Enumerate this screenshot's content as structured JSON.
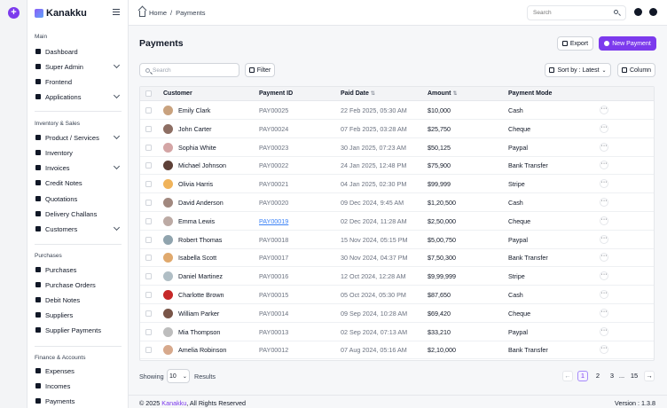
{
  "brand": {
    "name": "Kanakku"
  },
  "sidebar": {
    "sections": [
      {
        "title": "Main",
        "items": [
          {
            "label": "Dashboard",
            "chevron": false,
            "icon": "dashboard-icon"
          },
          {
            "label": "Super Admin",
            "chevron": true,
            "icon": "user-shield-icon"
          },
          {
            "label": "Frontend",
            "chevron": false,
            "icon": "frontend-icon"
          },
          {
            "label": "Applications",
            "chevron": true,
            "icon": "apps-icon"
          }
        ]
      },
      {
        "title": "Inventory & Sales",
        "items": [
          {
            "label": "Product / Services",
            "chevron": true,
            "icon": "box-icon"
          },
          {
            "label": "Inventory",
            "chevron": false,
            "icon": "inventory-icon"
          },
          {
            "label": "Invoices",
            "chevron": true,
            "icon": "invoice-icon"
          },
          {
            "label": "Credit Notes",
            "chevron": false,
            "icon": "credit-note-icon"
          },
          {
            "label": "Quotations",
            "chevron": false,
            "icon": "quotation-icon"
          },
          {
            "label": "Delivery Challans",
            "chevron": false,
            "icon": "truck-icon"
          },
          {
            "label": "Customers",
            "chevron": true,
            "icon": "users-icon"
          }
        ]
      },
      {
        "title": "Purchases",
        "items": [
          {
            "label": "Purchases",
            "chevron": false,
            "icon": "bag-icon"
          },
          {
            "label": "Purchase Orders",
            "chevron": false,
            "icon": "order-icon"
          },
          {
            "label": "Debit Notes",
            "chevron": false,
            "icon": "debit-note-icon"
          },
          {
            "label": "Suppliers",
            "chevron": false,
            "icon": "supplier-icon"
          },
          {
            "label": "Supplier Payments",
            "chevron": false,
            "icon": "payment-icon"
          }
        ]
      },
      {
        "title": "Finance & Accounts",
        "items": [
          {
            "label": "Expenses",
            "chevron": false,
            "icon": "expense-icon"
          },
          {
            "label": "Incomes",
            "chevron": false,
            "icon": "income-icon"
          },
          {
            "label": "Payments",
            "chevron": false,
            "icon": "payments-icon"
          }
        ]
      }
    ]
  },
  "header": {
    "breadcrumb_home": "Home",
    "breadcrumb_sep": "/",
    "breadcrumb_current": "Payments",
    "search_placeholder": "Search"
  },
  "page": {
    "title": "Payments",
    "export_label": "Export",
    "new_label": "New Payment",
    "search_placeholder": "Search",
    "filter_label": "Filter",
    "sort_label": "Sort by : Latest",
    "column_label": "Column"
  },
  "table": {
    "columns": [
      "Customer",
      "Payment ID",
      "Paid Date",
      "Amount",
      "Payment Mode"
    ],
    "rows": [
      {
        "customer": "Emily Clark",
        "id": "PAY00025",
        "date": "22 Feb 2025, 05:30 AM",
        "amount": "$10,000",
        "mode": "Cash"
      },
      {
        "customer": "John Carter",
        "id": "PAY00024",
        "date": "07 Feb 2025, 03:28 AM",
        "amount": "$25,750",
        "mode": "Cheque"
      },
      {
        "customer": "Sophia White",
        "id": "PAY00023",
        "date": "30 Jan 2025, 07:23 AM",
        "amount": "$50,125",
        "mode": "Paypal"
      },
      {
        "customer": "Michael Johnson",
        "id": "PAY00022",
        "date": "24 Jan 2025, 12:48 PM",
        "amount": "$75,900",
        "mode": "Bank Transfer"
      },
      {
        "customer": "Olivia Harris",
        "id": "PAY00021",
        "date": "04 Jan 2025, 02:30 PM",
        "amount": "$99,999",
        "mode": "Stripe"
      },
      {
        "customer": "David Anderson",
        "id": "PAY00020",
        "date": "09 Dec 2024, 9:45 AM",
        "amount": "$1,20,500",
        "mode": "Cash"
      },
      {
        "customer": "Emma Lewis",
        "id": "PAY00019",
        "date": "02 Dec 2024, 11:28 AM",
        "amount": "$2,50,000",
        "mode": "Cheque"
      },
      {
        "customer": "Robert Thomas",
        "id": "PAY00018",
        "date": "15 Nov 2024, 05:15 PM",
        "amount": "$5,00,750",
        "mode": "Paypal"
      },
      {
        "customer": "Isabella Scott",
        "id": "PAY00017",
        "date": "30 Nov 2024, 04:37 PM",
        "amount": "$7,50,300",
        "mode": "Bank Transfer"
      },
      {
        "customer": "Daniel Martinez",
        "id": "PAY00016",
        "date": "12 Oct 2024, 12:28 AM",
        "amount": "$9,99,999",
        "mode": "Stripe"
      },
      {
        "customer": "Charlotte Brown",
        "id": "PAY00015",
        "date": "05 Oct 2024, 05:30 PM",
        "amount": "$87,650",
        "mode": "Cash"
      },
      {
        "customer": "William Parker",
        "id": "PAY00014",
        "date": "09 Sep 2024, 10:28 AM",
        "amount": "$69,420",
        "mode": "Cheque"
      },
      {
        "customer": "Mia Thompson",
        "id": "PAY00013",
        "date": "02 Sep 2024, 07:13 AM",
        "amount": "$33,210",
        "mode": "Paypal"
      },
      {
        "customer": "Amelia Robinson",
        "id": "PAY00012",
        "date": "07 Aug 2024, 05:16 AM",
        "amount": "$2,10,000",
        "mode": "Bank Transfer"
      }
    ]
  },
  "pagination": {
    "showing_label": "Showing",
    "page_size": "10",
    "results_label": "Results",
    "pages": [
      "1",
      "2",
      "3",
      "...",
      "15"
    ],
    "prev": "←",
    "next": "→"
  },
  "footer": {
    "copyright_prefix": "© 2025",
    "brand": "Kanakku",
    "copyright_suffix": ", All Rights Reserved",
    "version": "Version : 1.3.8"
  },
  "colors": {
    "accent": "#7c3aed",
    "link": "#3b82f6"
  }
}
